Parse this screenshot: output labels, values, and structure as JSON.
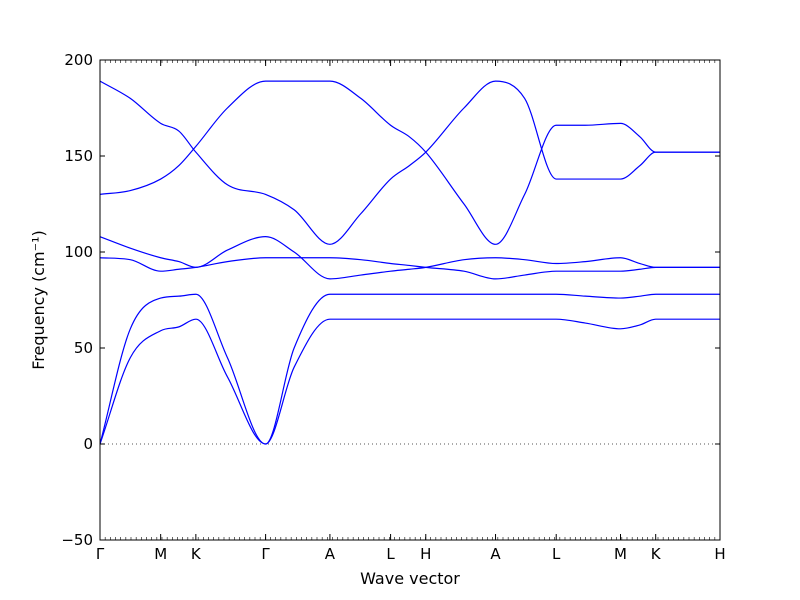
{
  "chart_data": {
    "type": "line",
    "title": "",
    "xlabel": "Wave vector",
    "ylabel": "Frequency (cm⁻¹)",
    "ylim": [
      -50,
      200
    ],
    "yticks": [
      -50,
      0,
      50,
      100,
      150,
      200
    ],
    "zero_line": true,
    "band_color": "#0000ff",
    "zero_line_color": "#555555",
    "x_ticks": [
      {
        "label": "Γ",
        "x": 0
      },
      {
        "label": "M",
        "x": 1
      },
      {
        "label": "K",
        "x": 1.58
      },
      {
        "label": "Γ",
        "x": 2.73
      },
      {
        "label": "A",
        "x": 3.79
      },
      {
        "label": "L",
        "x": 4.79
      },
      {
        "label": "H",
        "x": 5.37
      },
      {
        "label": "A",
        "x": 6.52
      },
      {
        "label": "L",
        "x": 7.52
      },
      {
        "label": "M",
        "x": 8.58
      },
      {
        "label": "K",
        "x": 9.16
      },
      {
        "label": "H",
        "x": 10.22
      }
    ],
    "series": [
      {
        "x": [
          0,
          0.5,
          1,
          1.3,
          1.58,
          2.1,
          2.73,
          3.2,
          3.79,
          4.3,
          4.79,
          5.1,
          5.37,
          6.0,
          6.52,
          7.0,
          7.52,
          8.0,
          8.58,
          8.9,
          9.16,
          9.7,
          10.22
        ],
        "values": [
          0,
          45,
          59,
          61,
          65,
          35,
          0,
          40,
          65,
          65,
          65,
          65,
          65,
          65,
          65,
          65,
          65,
          63,
          60,
          62,
          65,
          65,
          65
        ]
      },
      {
        "x": [
          0,
          0.5,
          1,
          1.3,
          1.58,
          2.1,
          2.73,
          3.2,
          3.79,
          4.3,
          4.79,
          5.1,
          5.37,
          6.0,
          6.52,
          7.0,
          7.52,
          8.0,
          8.58,
          8.9,
          9.16,
          9.7,
          10.22
        ],
        "values": [
          0,
          60,
          76,
          77,
          78,
          45,
          0,
          50,
          78,
          78,
          78,
          78,
          78,
          78,
          78,
          78,
          78,
          77,
          76,
          77,
          78,
          78,
          78
        ]
      },
      {
        "x": [
          0,
          0.5,
          1,
          1.3,
          1.58,
          2.1,
          2.73,
          3.2,
          3.79,
          4.3,
          4.79,
          5.1,
          5.37,
          6.0,
          6.52,
          7.0,
          7.52,
          8.0,
          8.58,
          8.9,
          9.16,
          9.7,
          10.22
        ],
        "values": [
          97,
          96,
          90,
          91,
          92,
          95,
          97,
          97,
          97,
          96,
          94,
          93,
          92,
          90,
          86,
          88,
          90,
          90,
          90,
          91,
          92,
          92,
          92
        ]
      },
      {
        "x": [
          0,
          0.5,
          1,
          1.3,
          1.58,
          2.1,
          2.73,
          3.2,
          3.79,
          4.3,
          4.79,
          5.1,
          5.37,
          6.0,
          6.52,
          7.0,
          7.52,
          8.0,
          8.58,
          8.9,
          9.16,
          9.7,
          10.22
        ],
        "values": [
          108,
          102,
          97,
          95,
          92,
          101,
          108,
          100,
          86,
          88,
          90,
          91,
          92,
          96,
          97,
          96,
          94,
          95,
          97,
          94,
          92,
          92,
          92
        ]
      },
      {
        "x": [
          0,
          0.5,
          1,
          1.3,
          1.58,
          2.1,
          2.73,
          3.2,
          3.79,
          4.3,
          4.79,
          5.1,
          5.37,
          6.0,
          6.52,
          7.0,
          7.52,
          8.0,
          8.58,
          8.9,
          9.16,
          9.7,
          10.22
        ],
        "values": [
          130,
          132,
          138,
          145,
          155,
          175,
          189,
          189,
          189,
          180,
          166,
          160,
          152,
          125,
          104,
          130,
          166,
          166,
          167,
          160,
          152,
          152,
          152
        ]
      },
      {
        "x": [
          0,
          0.5,
          1,
          1.3,
          1.58,
          2.1,
          2.73,
          3.2,
          3.79,
          4.3,
          4.79,
          5.1,
          5.37,
          6.0,
          6.52,
          7.0,
          7.52,
          8.0,
          8.58,
          8.9,
          9.16,
          9.7,
          10.22
        ],
        "values": [
          189,
          180,
          167,
          163,
          152,
          135,
          130,
          122,
          104,
          120,
          138,
          145,
          152,
          175,
          189,
          180,
          138,
          138,
          138,
          145,
          152,
          152,
          152
        ]
      }
    ]
  }
}
